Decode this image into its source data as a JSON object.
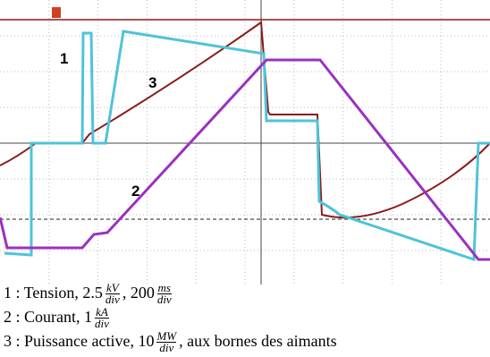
{
  "trace_labels": [
    "1",
    "2",
    "3"
  ],
  "caption": [
    {
      "parts": [
        "1 : Tension, 2.5",
        {
          "num": "kV",
          "den": "div"
        },
        ", 200",
        {
          "num": "ms",
          "den": "div"
        }
      ]
    },
    {
      "parts": [
        "2 : Courant, 1",
        {
          "num": "kA",
          "den": "div"
        }
      ]
    },
    {
      "parts": [
        "3 : Puissance active, 10",
        {
          "num": "MW",
          "den": "div"
        },
        ", aux bornes des aimants"
      ]
    }
  ]
}
